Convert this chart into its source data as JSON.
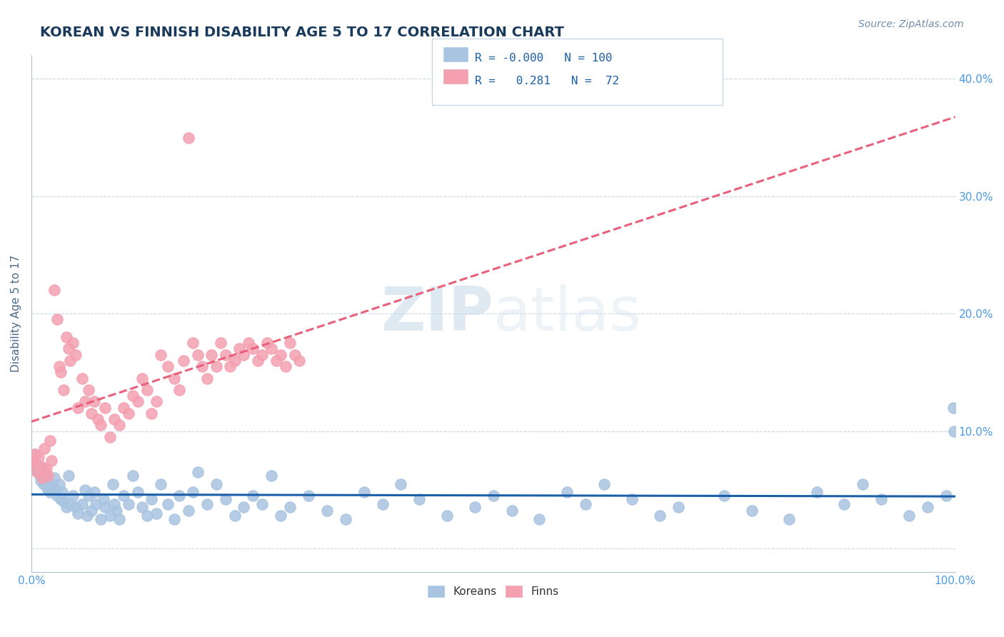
{
  "title": "KOREAN VS FINNISH DISABILITY AGE 5 TO 17 CORRELATION CHART",
  "source": "Source: ZipAtlas.com",
  "xlabel": "",
  "ylabel": "Disability Age 5 to 17",
  "xlim": [
    0.0,
    1.0
  ],
  "ylim": [
    -0.02,
    0.42
  ],
  "yticks": [
    0.0,
    0.1,
    0.2,
    0.3,
    0.4
  ],
  "ytick_labels": [
    "",
    "10.0%",
    "20.0%",
    "30.0%",
    "40.0%"
  ],
  "xtick_labels": [
    "0.0%",
    "100.0%"
  ],
  "korean_R": -0.0,
  "korean_N": 100,
  "finn_R": 0.281,
  "finn_N": 72,
  "korean_color": "#a8c4e0",
  "finn_color": "#f4a0b0",
  "korean_line_color": "#1a5fa8",
  "finn_line_color": "#e8607a",
  "background_color": "#ffffff",
  "grid_color": "#c8d8e8",
  "title_color": "#1a3a5c",
  "legend_R_color": "#1a5fa8",
  "koreans_x": [
    0.002,
    0.003,
    0.004,
    0.005,
    0.006,
    0.007,
    0.008,
    0.009,
    0.01,
    0.012,
    0.013,
    0.015,
    0.016,
    0.018,
    0.019,
    0.02,
    0.022,
    0.025,
    0.027,
    0.028,
    0.03,
    0.032,
    0.033,
    0.035,
    0.038,
    0.04,
    0.042,
    0.045,
    0.048,
    0.05,
    0.055,
    0.058,
    0.06,
    0.062,
    0.065,
    0.068,
    0.07,
    0.075,
    0.078,
    0.08,
    0.085,
    0.088,
    0.09,
    0.092,
    0.095,
    0.1,
    0.105,
    0.11,
    0.115,
    0.12,
    0.125,
    0.13,
    0.135,
    0.14,
    0.148,
    0.155,
    0.16,
    0.17,
    0.175,
    0.18,
    0.19,
    0.2,
    0.21,
    0.22,
    0.23,
    0.24,
    0.25,
    0.26,
    0.27,
    0.28,
    0.3,
    0.32,
    0.34,
    0.36,
    0.38,
    0.4,
    0.42,
    0.45,
    0.48,
    0.5,
    0.52,
    0.55,
    0.58,
    0.6,
    0.62,
    0.65,
    0.68,
    0.7,
    0.75,
    0.78,
    0.82,
    0.85,
    0.88,
    0.9,
    0.92,
    0.95,
    0.97,
    0.99,
    0.999,
    0.998
  ],
  "koreans_y": [
    0.075,
    0.08,
    0.07,
    0.072,
    0.068,
    0.065,
    0.07,
    0.062,
    0.058,
    0.06,
    0.055,
    0.065,
    0.058,
    0.05,
    0.052,
    0.048,
    0.055,
    0.06,
    0.05,
    0.045,
    0.055,
    0.042,
    0.048,
    0.04,
    0.035,
    0.062,
    0.038,
    0.045,
    0.035,
    0.03,
    0.038,
    0.05,
    0.028,
    0.045,
    0.032,
    0.048,
    0.038,
    0.025,
    0.042,
    0.035,
    0.028,
    0.055,
    0.038,
    0.032,
    0.025,
    0.045,
    0.038,
    0.062,
    0.048,
    0.035,
    0.028,
    0.042,
    0.03,
    0.055,
    0.038,
    0.025,
    0.045,
    0.032,
    0.048,
    0.065,
    0.038,
    0.055,
    0.042,
    0.028,
    0.035,
    0.045,
    0.038,
    0.062,
    0.028,
    0.035,
    0.045,
    0.032,
    0.025,
    0.048,
    0.038,
    0.055,
    0.042,
    0.028,
    0.035,
    0.045,
    0.032,
    0.025,
    0.048,
    0.038,
    0.055,
    0.042,
    0.028,
    0.035,
    0.045,
    0.032,
    0.025,
    0.048,
    0.038,
    0.055,
    0.042,
    0.028,
    0.035,
    0.045,
    0.1,
    0.12
  ],
  "finns_x": [
    0.001,
    0.002,
    0.004,
    0.006,
    0.008,
    0.01,
    0.012,
    0.014,
    0.016,
    0.018,
    0.02,
    0.022,
    0.025,
    0.028,
    0.03,
    0.032,
    0.035,
    0.038,
    0.04,
    0.042,
    0.045,
    0.048,
    0.05,
    0.055,
    0.058,
    0.062,
    0.065,
    0.068,
    0.072,
    0.075,
    0.08,
    0.085,
    0.09,
    0.095,
    0.1,
    0.105,
    0.11,
    0.115,
    0.12,
    0.125,
    0.13,
    0.135,
    0.14,
    0.148,
    0.155,
    0.16,
    0.165,
    0.17,
    0.175,
    0.18,
    0.185,
    0.19,
    0.195,
    0.2,
    0.205,
    0.21,
    0.215,
    0.22,
    0.225,
    0.23,
    0.235,
    0.24,
    0.245,
    0.25,
    0.255,
    0.26,
    0.265,
    0.27,
    0.275,
    0.28,
    0.285,
    0.29
  ],
  "finns_y": [
    0.075,
    0.072,
    0.08,
    0.065,
    0.078,
    0.07,
    0.06,
    0.085,
    0.068,
    0.062,
    0.092,
    0.075,
    0.22,
    0.195,
    0.155,
    0.15,
    0.135,
    0.18,
    0.17,
    0.16,
    0.175,
    0.165,
    0.12,
    0.145,
    0.125,
    0.135,
    0.115,
    0.125,
    0.11,
    0.105,
    0.12,
    0.095,
    0.11,
    0.105,
    0.12,
    0.115,
    0.13,
    0.125,
    0.145,
    0.135,
    0.115,
    0.125,
    0.165,
    0.155,
    0.145,
    0.135,
    0.16,
    0.35,
    0.175,
    0.165,
    0.155,
    0.145,
    0.165,
    0.155,
    0.175,
    0.165,
    0.155,
    0.16,
    0.17,
    0.165,
    0.175,
    0.17,
    0.16,
    0.165,
    0.175,
    0.17,
    0.16,
    0.165,
    0.155,
    0.175,
    0.165,
    0.16
  ]
}
